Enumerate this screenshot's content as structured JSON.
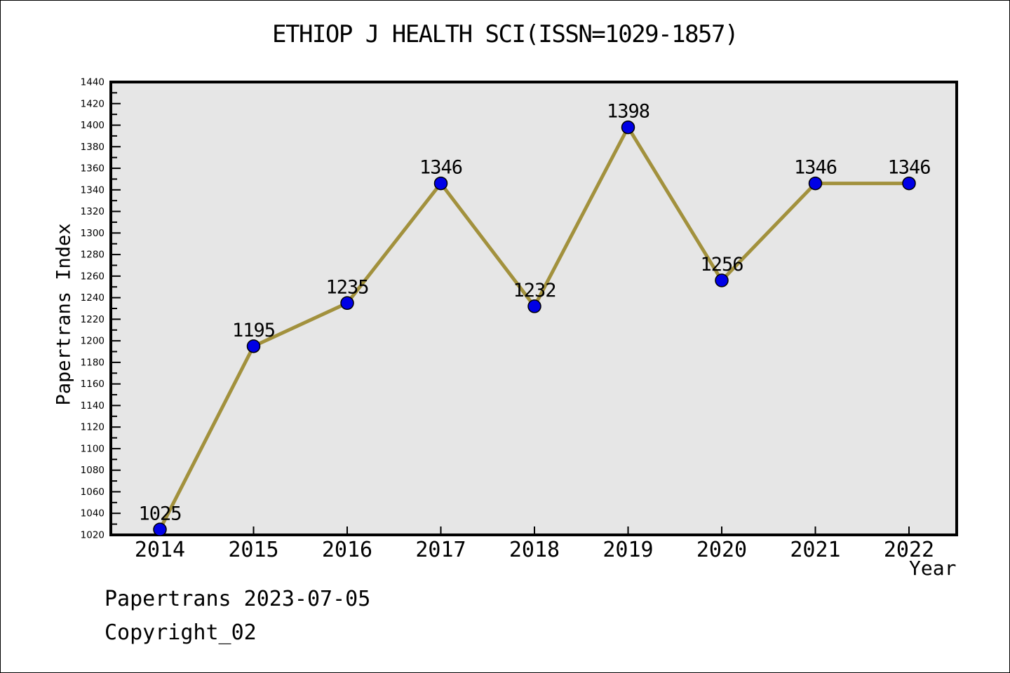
{
  "title": "ETHIOP J HEALTH SCI(ISSN=1029-1857)",
  "footer": {
    "line1": "Papertrans 2023-07-05",
    "line2": "Copyright_02"
  },
  "chart_data": {
    "type": "line",
    "title": "ETHIOP J HEALTH SCI(ISSN=1029-1857)",
    "xlabel": "Year",
    "ylabel": "Papertrans Index",
    "categories": [
      2014,
      2015,
      2016,
      2017,
      2018,
      2019,
      2020,
      2021,
      2022
    ],
    "values": [
      1025,
      1195,
      1235,
      1346,
      1232,
      1398,
      1256,
      1346,
      1346
    ],
    "point_labels": [
      "1025",
      "1195",
      "1235",
      "1346",
      "1232",
      "1398",
      "1256",
      "1346",
      "1346"
    ],
    "ylim": [
      1020,
      1440
    ],
    "ytick_major_step": 20,
    "ytick_minor_step": 10,
    "grid": false,
    "legend": null,
    "colors": {
      "line": "#a2913d",
      "marker_fill": "#0000e6",
      "marker_edge": "#000000",
      "plot_bg": "#e6e6e6",
      "figure_bg": "#ffffff",
      "axis": "#000000",
      "text": "#000000"
    }
  }
}
